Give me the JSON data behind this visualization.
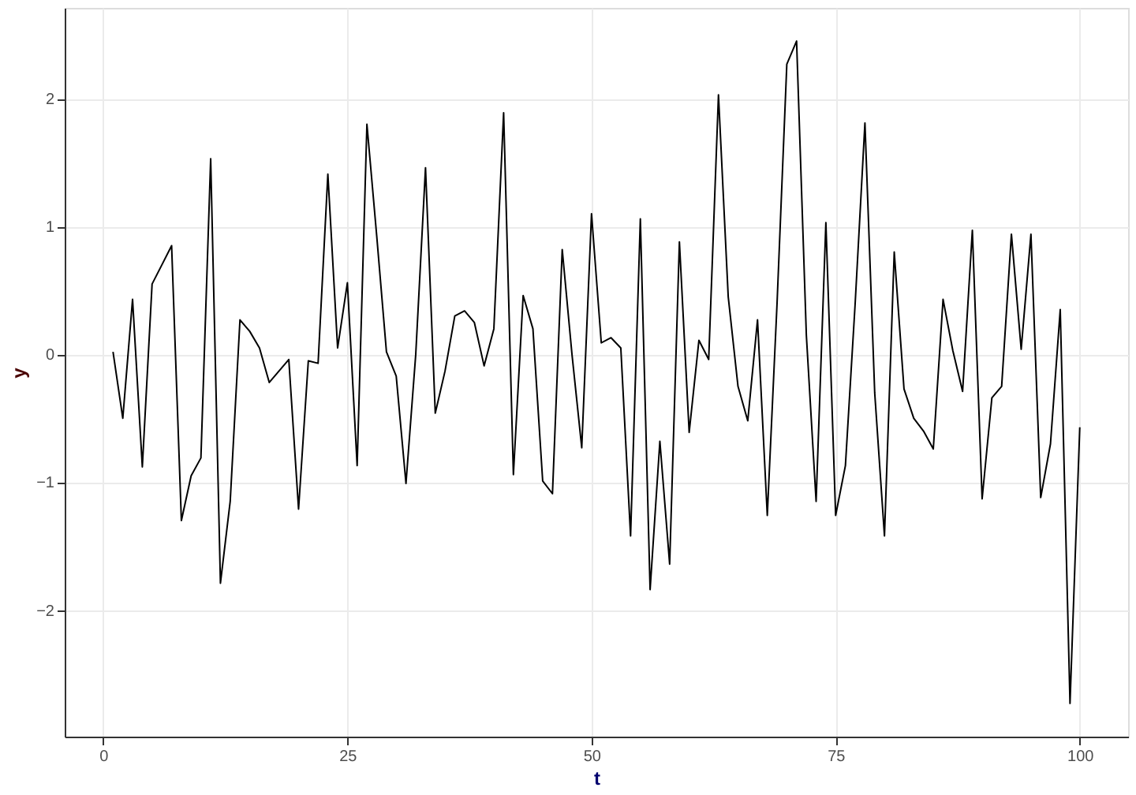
{
  "chart_data": {
    "type": "line",
    "xlabel": "t",
    "ylabel": "y",
    "x": [
      1,
      2,
      3,
      4,
      5,
      6,
      7,
      8,
      9,
      10,
      11,
      12,
      13,
      14,
      15,
      16,
      17,
      18,
      19,
      20,
      21,
      22,
      23,
      24,
      25,
      26,
      27,
      28,
      29,
      30,
      31,
      32,
      33,
      34,
      35,
      36,
      37,
      38,
      39,
      40,
      41,
      42,
      43,
      44,
      45,
      46,
      47,
      48,
      49,
      50,
      51,
      52,
      53,
      54,
      55,
      56,
      57,
      58,
      59,
      60,
      61,
      62,
      63,
      64,
      65,
      66,
      67,
      68,
      69,
      70,
      71,
      72,
      73,
      74,
      75,
      76,
      77,
      78,
      79,
      80,
      81,
      82,
      83,
      84,
      85,
      86,
      87,
      88,
      89,
      90,
      91,
      92,
      93,
      94,
      95,
      96,
      97,
      98,
      99,
      100
    ],
    "series": [
      {
        "color": "#000000",
        "values": [
          0.02,
          -0.5,
          0.43,
          -0.88,
          0.55,
          0.7,
          0.85,
          -1.3,
          -0.95,
          -0.81,
          1.53,
          -1.79,
          -1.15,
          0.27,
          0.18,
          0.05,
          -0.22,
          -0.13,
          -0.04,
          -1.21,
          -0.05,
          -0.07,
          1.41,
          0.05,
          0.56,
          -0.87,
          1.8,
          0.93,
          0.02,
          -0.17,
          -1.01,
          0.0,
          1.46,
          -0.46,
          -0.13,
          0.3,
          0.34,
          0.25,
          -0.09,
          0.2,
          1.89,
          -0.94,
          0.46,
          0.2,
          -0.99,
          -1.09,
          0.82,
          0.0,
          -0.73,
          1.1,
          0.09,
          0.13,
          0.05,
          -1.42,
          1.06,
          -1.84,
          -0.68,
          -1.64,
          0.88,
          -0.61,
          0.11,
          -0.04,
          2.03,
          0.45,
          -0.25,
          -0.52,
          0.27,
          -1.26,
          0.4,
          2.27,
          2.45,
          0.15,
          -1.15,
          1.03,
          -1.26,
          -0.87,
          0.4,
          1.81,
          -0.3,
          -1.42,
          0.8,
          -0.27,
          -0.5,
          -0.6,
          -0.74,
          0.43,
          0.03,
          -0.29,
          0.97,
          -1.13,
          -0.34,
          -0.25,
          0.94,
          0.04,
          0.94,
          -1.12,
          -0.7,
          0.35,
          -2.73,
          -0.57
        ]
      }
    ],
    "xlim": [
      -3.95,
      104.95
    ],
    "ylim": [
      -2.99,
      2.71
    ],
    "xticks": [
      0,
      25,
      50,
      75,
      100
    ],
    "yticks": [
      -2,
      -1,
      0,
      1,
      2
    ],
    "grid": true,
    "marker": "none",
    "line_style": "solid"
  }
}
